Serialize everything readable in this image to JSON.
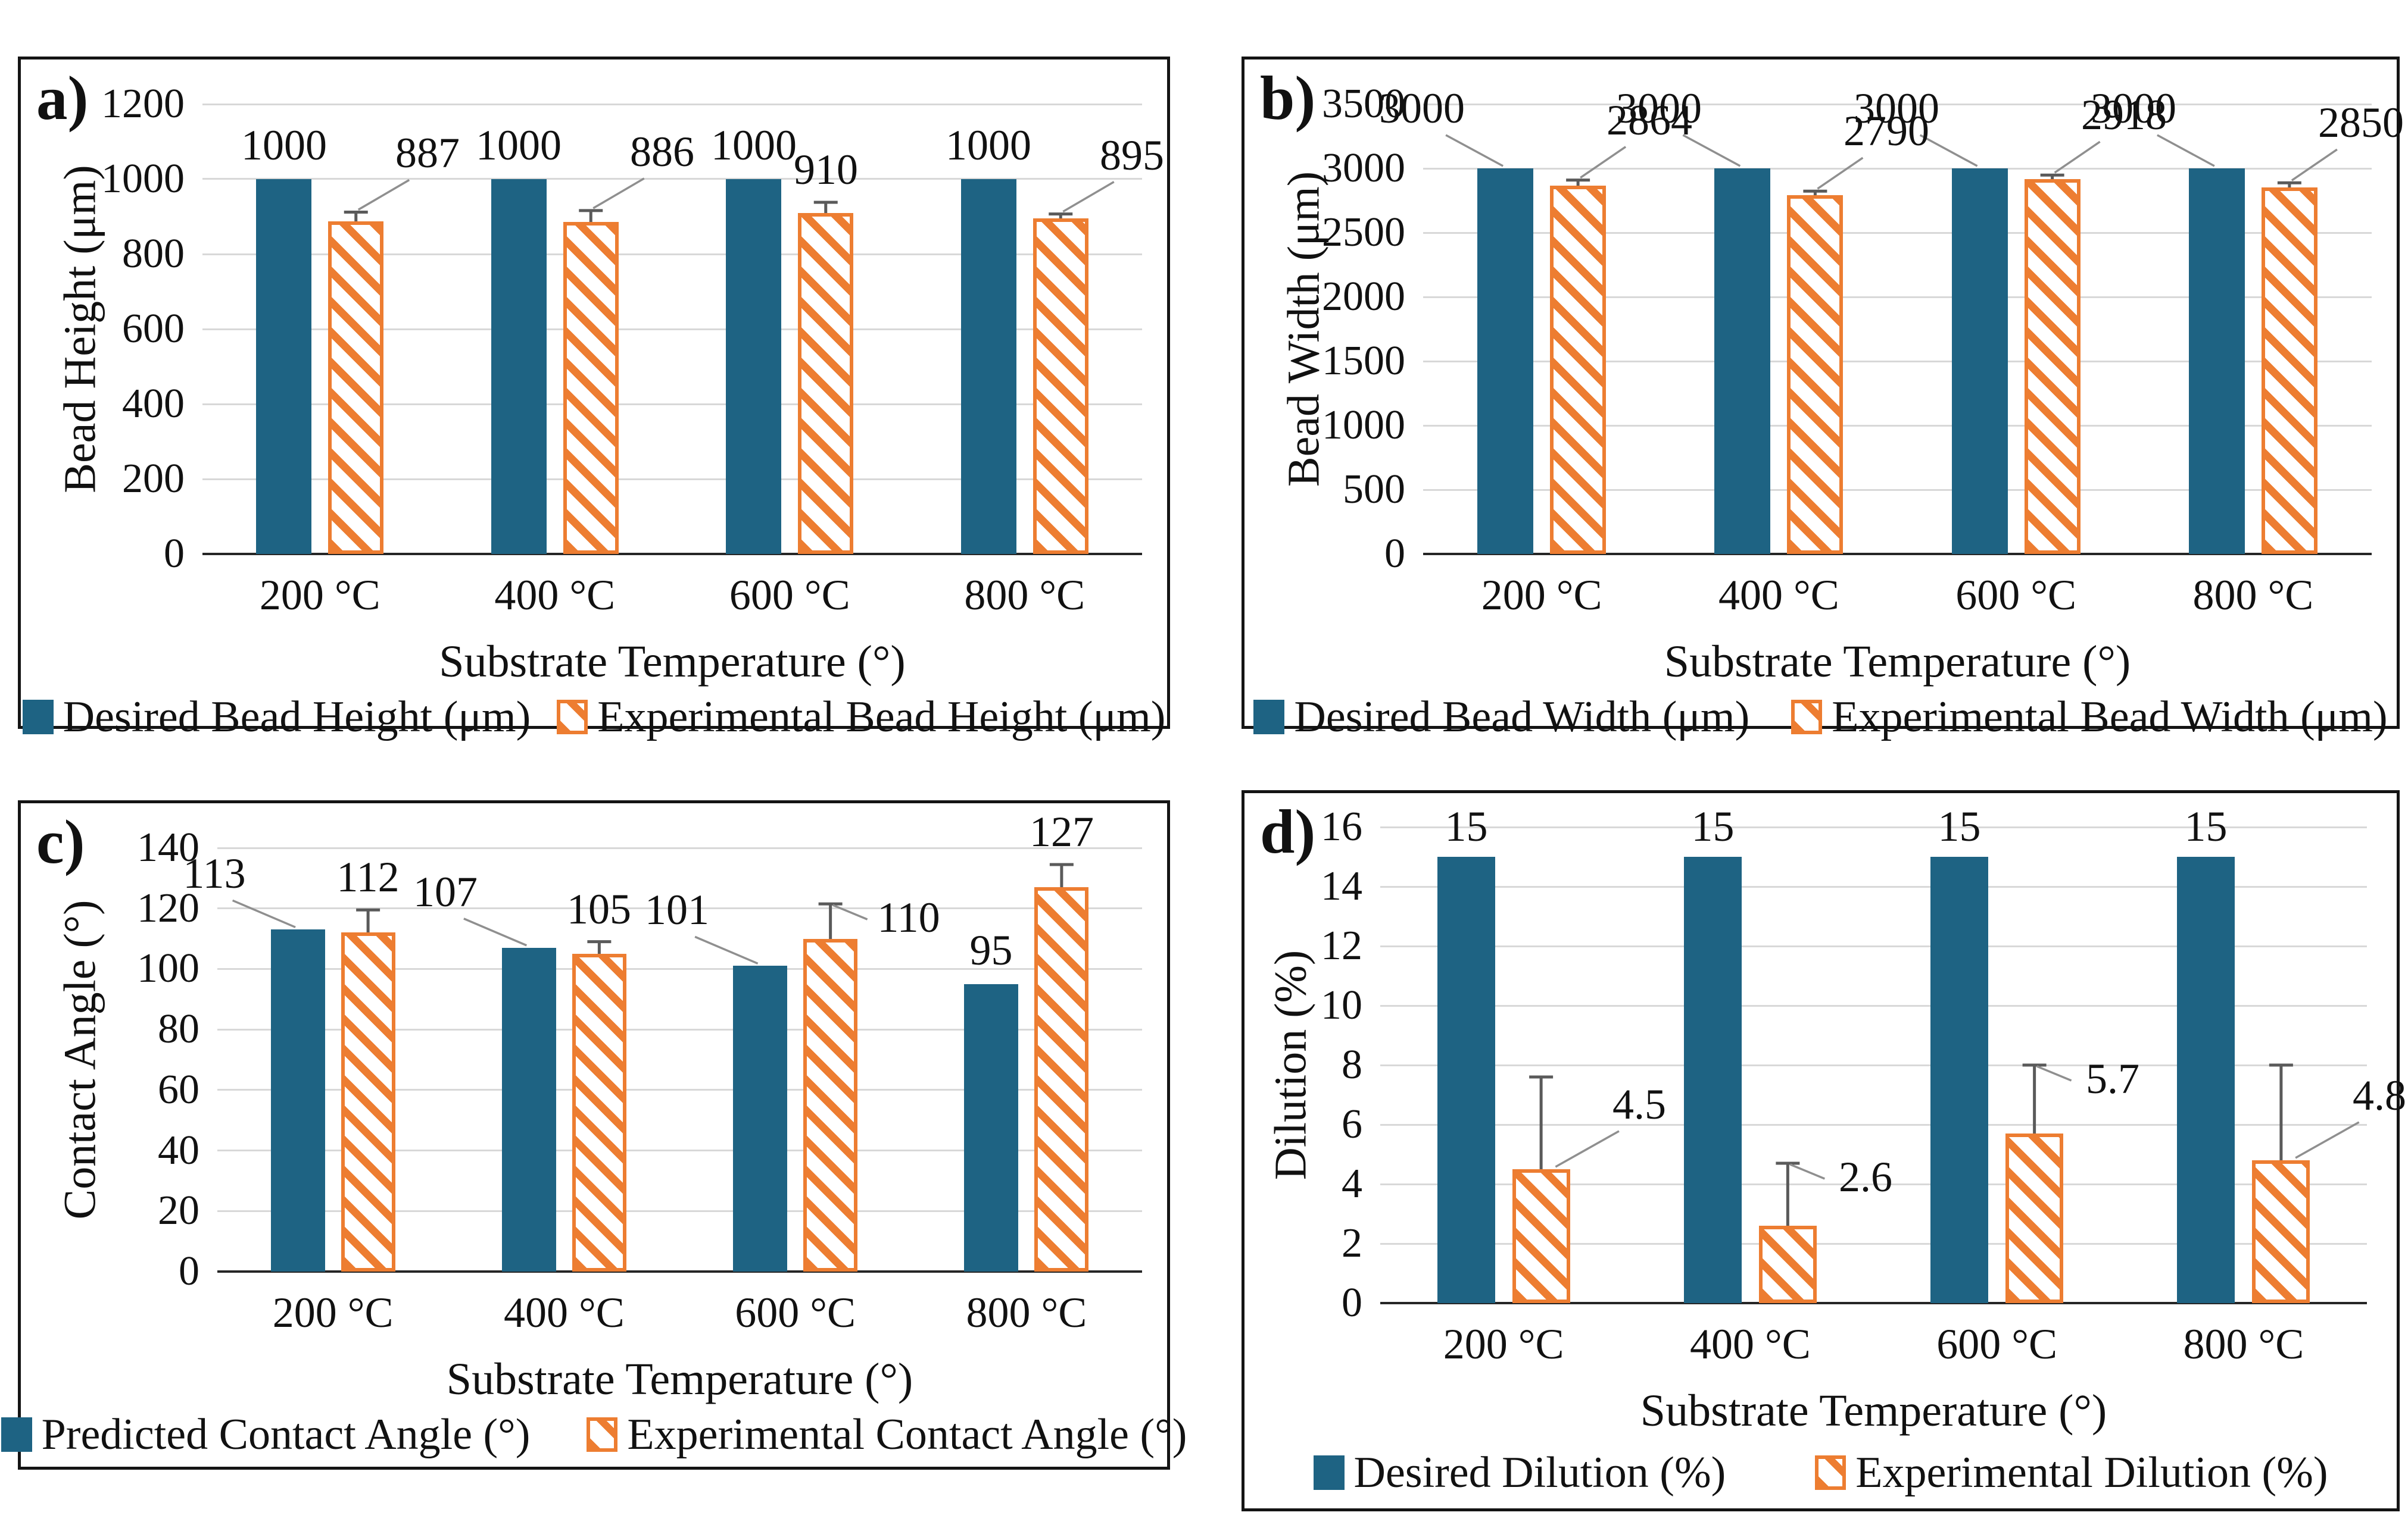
{
  "colors": {
    "desired_fill": "#1e6383",
    "experimental_stroke": "#ED7D31",
    "hatch_orange": "#ED7D31",
    "gridline": "#d8d8d8",
    "axis_line": "#262626",
    "error_bar": "#5a5a5a",
    "leader_line": "#8f8f8f",
    "panel_border": "#141414",
    "text": "#111111"
  },
  "chart_data": [
    {
      "type": "bar",
      "panel_letter": "a)",
      "xlabel": "Substrate Temperature (°)",
      "ylabel": "Bead Height (μm)",
      "ylim": [
        0,
        1200
      ],
      "ytick_step": 200,
      "ytick_labels": [
        "0",
        "200",
        "400",
        "600",
        "800",
        "1000",
        "1200"
      ],
      "categories": [
        "200 °C",
        "400  °C",
        "600  °C",
        "800  °C"
      ],
      "grid": true,
      "legend_position": "bottom",
      "series": [
        {
          "name": "Desired Bead Height (μm)",
          "style": "solid",
          "values": [
            1000,
            1000,
            1000,
            1000
          ],
          "data_labels": [
            "1000",
            "1000",
            "1000",
            "1000"
          ],
          "label_hints": {
            "pos": [
              "c",
              "c",
              "c",
              "c"
            ],
            "c_gap": 18
          }
        },
        {
          "name": "Experimental Bead Height (μm)",
          "style": "hatch",
          "values": [
            887,
            886,
            910,
            895
          ],
          "errors": [
            25,
            30,
            28,
            12
          ],
          "data_labels": [
            "887",
            "886",
            "910",
            "895"
          ],
          "label_hints": {
            "pos": [
              "ur",
              "ur",
              "cerr",
              "ur"
            ],
            "ur_gap": 60
          }
        }
      ]
    },
    {
      "type": "bar",
      "panel_letter": "b)",
      "xlabel": "Substrate Temperature (°)",
      "ylabel": "Bead Width (μm)",
      "ylim": [
        0,
        3500
      ],
      "ytick_step": 500,
      "ytick_labels": [
        "0",
        "500",
        "1000",
        "1500",
        "2000",
        "2500",
        "3000",
        "3500"
      ],
      "categories": [
        "200 °C",
        "400  °C",
        "600  °C",
        "800  °C"
      ],
      "grid": true,
      "legend_position": "bottom",
      "series": [
        {
          "name": "Desired Bead Width (μm)",
          "style": "solid",
          "values": [
            3000,
            3000,
            3000,
            3000
          ],
          "data_labels": [
            "3000",
            "3000",
            "3000",
            "3000"
          ],
          "label_hints": {
            "pos": [
              "ul",
              "ul",
              "ul",
              "ul"
            ],
            "ul_gap": 62
          }
        },
        {
          "name": "Experimental Bead Width (μm)",
          "style": "hatch",
          "values": [
            2864,
            2790,
            2918,
            2850
          ],
          "errors": [
            45,
            33,
            30,
            38
          ],
          "data_labels": [
            "2864",
            "2790",
            "2918",
            "2850"
          ],
          "label_hints": {
            "pos": [
              "ur",
              "ur",
              "ur",
              "ur"
            ],
            "ur_gap": 62
          }
        }
      ]
    },
    {
      "type": "bar",
      "panel_letter": "c)",
      "xlabel": "Substrate Temperature (°)",
      "ylabel": "Contact Angle (°)",
      "ylim": [
        0,
        140
      ],
      "ytick_step": 20,
      "ytick_labels": [
        "0",
        "20",
        "40",
        "60",
        "80",
        "100",
        "120",
        "140"
      ],
      "categories": [
        "200 °C",
        "400  °C",
        "600  °C",
        "800  °C"
      ],
      "grid": true,
      "legend_position": "bottom",
      "series": [
        {
          "name": "Predicted Contact Angle (°)",
          "style": "solid",
          "values": [
            113,
            107,
            101,
            95
          ],
          "data_labels": [
            "113",
            "107",
            "101",
            "95"
          ],
          "label_hints": {
            "pos": [
              "ul",
              "ul",
              "ul",
              "c"
            ],
            "ul_gap": 55,
            "c_gap": 18
          }
        },
        {
          "name": "Experimental Contact Angle (°)",
          "style": "hatch",
          "values": [
            112,
            105,
            110,
            127
          ],
          "errors": [
            7.5,
            4,
            11.5,
            7.5
          ],
          "data_labels": [
            "112",
            "105",
            "110",
            "127"
          ],
          "label_hints": {
            "pos": [
              "cerr",
              "cerr",
              "r",
              "cerr"
            ]
          }
        }
      ]
    },
    {
      "type": "bar",
      "panel_letter": "d)",
      "xlabel": "Substrate Temperature (°)",
      "ylabel": "Dilution (%)",
      "ylim": [
        0,
        16
      ],
      "ytick_step": 2,
      "ytick_labels": [
        "0",
        "2",
        "4",
        "6",
        "8",
        "10",
        "12",
        "14",
        "16"
      ],
      "categories": [
        "200 °C",
        "400  °C",
        "600  °C",
        "800  °C"
      ],
      "grid": true,
      "legend_position": "bottom",
      "series": [
        {
          "name": "Desired Dilution (%)",
          "style": "solid",
          "values": [
            15,
            15,
            15,
            15
          ],
          "data_labels": [
            "15",
            "15",
            "15",
            "15"
          ],
          "label_hints": {
            "pos": [
              "c",
              "c",
              "c",
              "c"
            ],
            "c_gap": 12
          }
        },
        {
          "name": "Experimental Dilution (%)",
          "style": "hatch",
          "values": [
            4.5,
            2.6,
            5.7,
            4.8
          ],
          "errors": [
            3.1,
            2.1,
            2.3,
            3.2
          ],
          "data_labels": [
            "4.5",
            "2.6",
            "5.7",
            "4.8"
          ],
          "label_hints": {
            "pos": [
              "rd",
              "r",
              "r",
              "rd"
            ]
          }
        }
      ]
    }
  ]
}
